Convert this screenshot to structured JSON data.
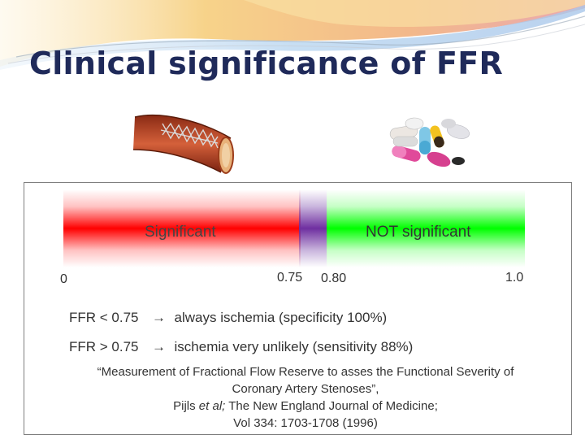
{
  "slide": {
    "title": "Clinical significance of FFR"
  },
  "images": {
    "stent": "stent-artery-illustration",
    "pills": "medication-pills-illustration"
  },
  "scale": {
    "left_label": "Significant",
    "right_label": "NOT significant",
    "ticks": [
      "0",
      "0.75",
      "0.80",
      "1.0"
    ],
    "colors": {
      "significant": "#ff0000",
      "grey_zone": "#6f2fa0",
      "not_significant": "#00ff00"
    }
  },
  "statements": [
    {
      "condition": "FFR < 0.75",
      "arrow": "→",
      "result": "always ischemia (specificity 100%)"
    },
    {
      "condition": "FFR > 0.75",
      "arrow": "→",
      "result": "ischemia very unlikely (sensitivity 88%)"
    }
  ],
  "citation": {
    "line1": "“Measurement of Fractional Flow Reserve to asses the Functional Severity of",
    "line2": "Coronary Artery Stenoses”,",
    "line3_author": "Pijls ",
    "line3_etal": "et al;",
    "line3_journal": " The New England Journal of Medicine;",
    "line4": "Vol 334: 1703-1708 (1996)"
  }
}
